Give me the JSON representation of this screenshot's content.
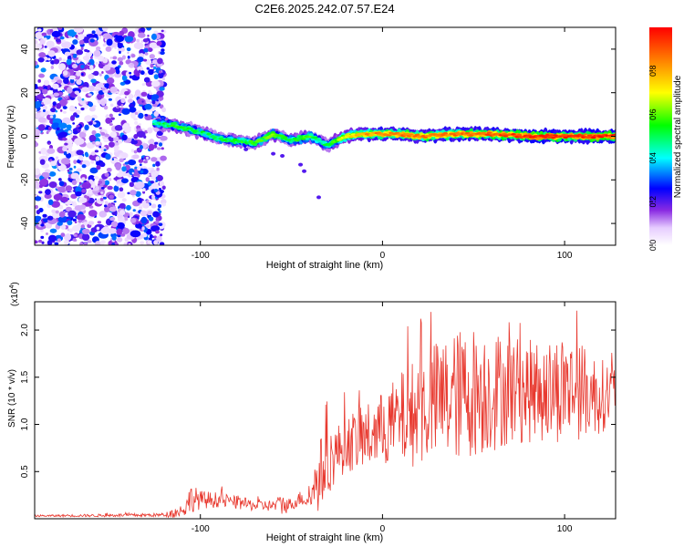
{
  "chart_data": [
    {
      "type": "heatmap",
      "title": "C2E6.2025.242.07.57.E24",
      "xlabel": "Height of straight line (km)",
      "ylabel": "Frequency (Hz)",
      "xlim": [
        -191,
        128
      ],
      "ylim": [
        -50,
        50
      ],
      "xticks": [
        -100,
        0,
        100
      ],
      "xtick_labels": [
        "-100",
        "0",
        "100"
      ],
      "yticks": [
        -40,
        -20,
        0,
        20,
        40
      ],
      "ytick_labels": [
        "-40",
        "-20",
        "0",
        "20",
        "40"
      ],
      "noise_region_x": [
        -191,
        -120
      ],
      "ridge": {
        "x": [
          -125,
          -115,
          -110,
          -100,
          -90,
          -80,
          -70,
          -60,
          -50,
          -40,
          -35,
          -30,
          -20,
          -10,
          0,
          10,
          20,
          40,
          60,
          80,
          100,
          128
        ],
        "frequency": [
          6,
          5,
          4,
          2,
          -1,
          -2,
          -3,
          1,
          -2,
          0,
          -2,
          -4,
          0,
          1,
          1,
          1,
          0,
          1,
          1,
          0,
          0,
          0
        ],
        "amplitude": [
          0.45,
          0.55,
          0.55,
          0.5,
          0.5,
          0.55,
          0.55,
          0.6,
          0.5,
          0.6,
          0.45,
          0.5,
          0.7,
          0.8,
          0.85,
          0.85,
          0.85,
          0.85,
          0.9,
          0.95,
          0.95,
          0.95
        ]
      },
      "colorbar": {
        "label": "Normalized spectral amplitude",
        "range": [
          0,
          1
        ],
        "ticks": [
          0,
          0.2,
          0.4,
          0.6,
          0.8
        ],
        "tick_labels": [
          "0.0",
          "0.2",
          "0.4",
          "0.6",
          "0.8"
        ]
      }
    },
    {
      "type": "line",
      "title": "",
      "xlabel": "Height of straight line (km)",
      "ylabel": "SNR (10 * v/v)",
      "y_multiplier_label": "(x10",
      "y_multiplier_exp": "4",
      "xlim": [
        -191,
        128
      ],
      "ylim": [
        0,
        2.3
      ],
      "xticks": [
        -100,
        0,
        100
      ],
      "xtick_labels": [
        "-100",
        "0",
        "100"
      ],
      "yticks": [
        0.5,
        1.0,
        1.5,
        2.0
      ],
      "ytick_labels": [
        "0.5",
        "1.0",
        "1.5",
        "2.0"
      ],
      "series": [
        {
          "name": "SNR",
          "color": "#e8392f",
          "envelope_x": [
            -191,
            -120,
            -110,
            -105,
            -100,
            -90,
            -80,
            -70,
            -60,
            -55,
            -50,
            -45,
            -40,
            -35,
            -30,
            -25,
            -20,
            -10,
            0,
            10,
            20,
            30,
            40,
            50,
            60,
            70,
            80,
            90,
            100,
            110,
            120,
            128
          ],
          "envelope_mean": [
            0.03,
            0.04,
            0.08,
            0.22,
            0.2,
            0.2,
            0.17,
            0.14,
            0.14,
            0.15,
            0.15,
            0.22,
            0.2,
            0.45,
            0.6,
            0.7,
            0.8,
            0.85,
            0.95,
            1.05,
            1.15,
            1.25,
            1.3,
            1.35,
            1.35,
            1.38,
            1.35,
            1.35,
            1.4,
            1.35,
            1.3,
            1.35
          ],
          "envelope_amp": [
            0.01,
            0.02,
            0.08,
            0.15,
            0.1,
            0.08,
            0.07,
            0.06,
            0.06,
            0.12,
            0.06,
            0.08,
            0.1,
            0.4,
            0.35,
            0.3,
            0.3,
            0.35,
            0.4,
            0.5,
            0.6,
            0.65,
            0.7,
            0.7,
            0.65,
            0.6,
            0.55,
            0.55,
            0.6,
            0.5,
            0.4,
            0.3
          ]
        }
      ]
    }
  ]
}
